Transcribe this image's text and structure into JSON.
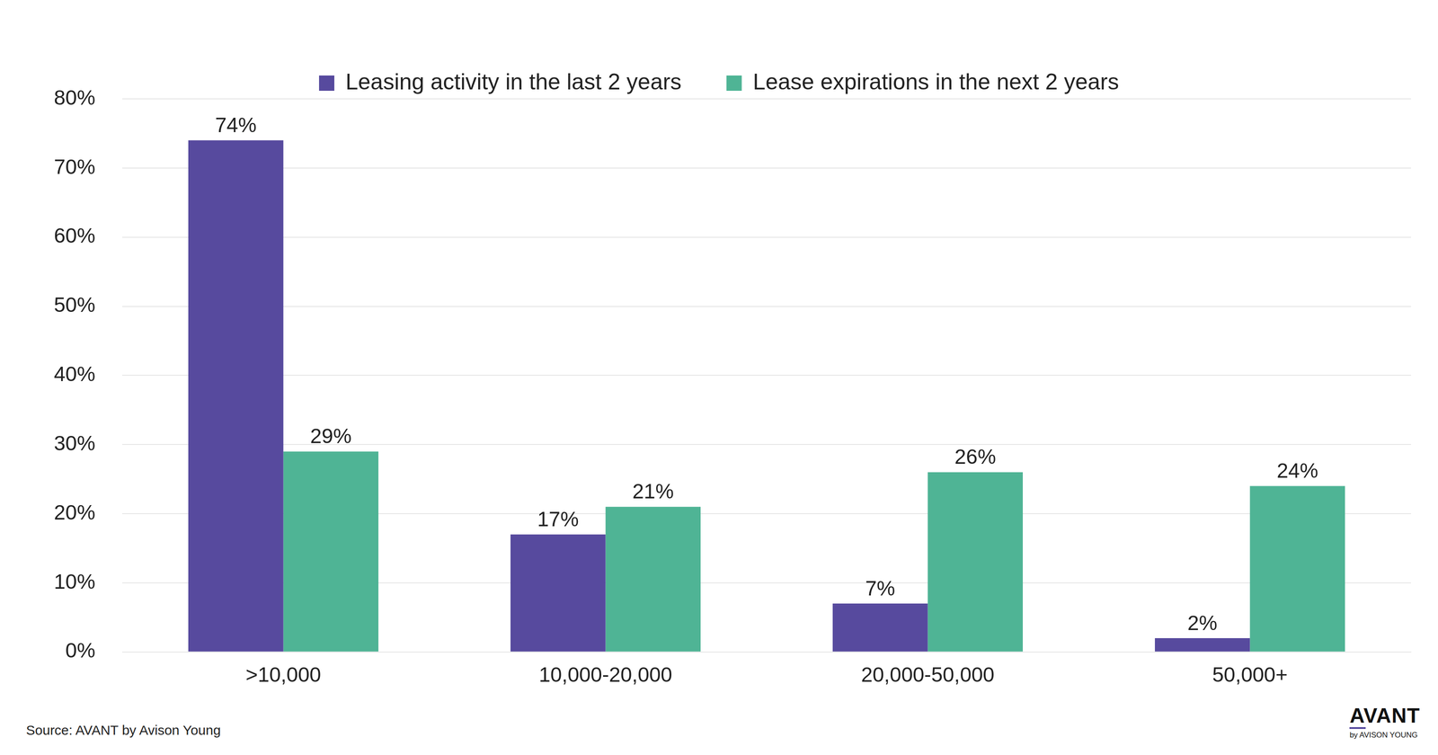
{
  "chart_data": {
    "type": "bar",
    "categories": [
      ">10,000",
      "10,000-20,000",
      "20,000-50,000",
      "50,000+"
    ],
    "series": [
      {
        "name": "Leasing activity in the last 2 years",
        "color": "#574a9e",
        "values": [
          74,
          17,
          7,
          2
        ],
        "value_labels": [
          "74%",
          "17%",
          "7%",
          "2%"
        ]
      },
      {
        "name": "Lease expirations in the next 2 years",
        "color": "#4fb495",
        "values": [
          29,
          21,
          26,
          24
        ],
        "value_labels": [
          "29%",
          "21%",
          "26%",
          "24%"
        ]
      }
    ],
    "ylim": [
      0,
      80
    ],
    "yticks": [
      {
        "value": 0,
        "label": "0%"
      },
      {
        "value": 10,
        "label": "10%"
      },
      {
        "value": 20,
        "label": "20%"
      },
      {
        "value": 30,
        "label": "30%"
      },
      {
        "value": 40,
        "label": "40%"
      },
      {
        "value": 50,
        "label": "50%"
      },
      {
        "value": 60,
        "label": "60%"
      },
      {
        "value": 70,
        "label": "70%"
      },
      {
        "value": 80,
        "label": "80%"
      }
    ],
    "grid": true,
    "legend": "top",
    "data_labels": true,
    "source": "Source: AVANT by Avison Young",
    "logo": {
      "main": "AVANT",
      "sub": "by AVISON YOUNG"
    }
  }
}
